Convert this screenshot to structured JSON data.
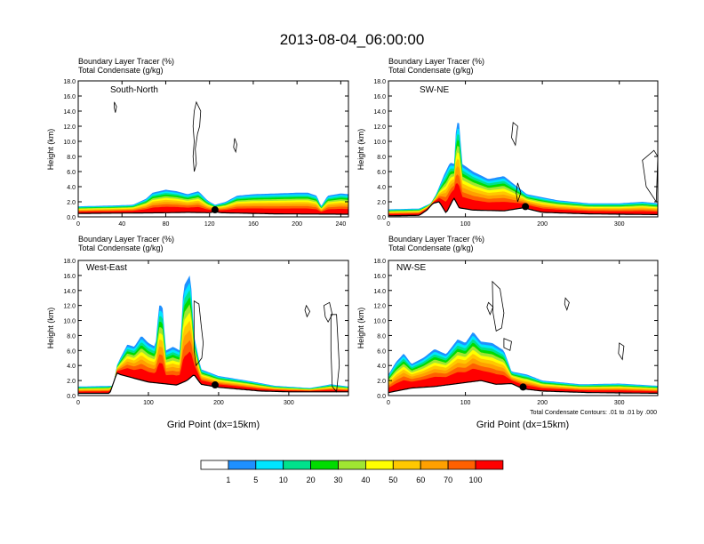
{
  "title": "2013-08-04_06:00:00",
  "colors": {
    "palette": [
      "#ffffff",
      "#1e90ff",
      "#00e5ff",
      "#00e28c",
      "#00dc00",
      "#a0e632",
      "#ffff00",
      "#ffc800",
      "#ffa000",
      "#ff6000",
      "#ff0000"
    ],
    "terrain": "#000000"
  },
  "colorbar": {
    "labels": [
      "1",
      "5",
      "10",
      "20",
      "30",
      "40",
      "50",
      "60",
      "70",
      "100"
    ]
  },
  "footnote": "Total Condensate Contours: .01 to .01 by .000",
  "chart_data": [
    {
      "type": "heatmap",
      "panel": "South-North",
      "label_top": "Boundary Layer Tracer   (%)",
      "label_bottom": "Total Condensate   (g/kg)",
      "ylabel": "Height (km)",
      "xlabel": "",
      "xlim": [
        0,
        247
      ],
      "ylim": [
        0,
        18
      ],
      "xticks": [
        "0",
        "40",
        "80",
        "120",
        "160",
        "200",
        "240"
      ],
      "xtick_values": [
        0,
        40,
        80,
        120,
        160,
        200,
        240
      ],
      "yticks": [
        "0.0",
        "2.0",
        "4.0",
        "6.0",
        "8.0",
        "10.0",
        "12.0",
        "14.0",
        "16.0",
        "18.0"
      ],
      "tracer_top_km": [
        [
          0,
          1.4
        ],
        [
          30,
          1.5
        ],
        [
          50,
          1.6
        ],
        [
          62,
          2.4
        ],
        [
          68,
          3.2
        ],
        [
          80,
          3.6
        ],
        [
          90,
          3.4
        ],
        [
          100,
          3.0
        ],
        [
          110,
          3.4
        ],
        [
          118,
          2.2
        ],
        [
          125,
          1.6
        ],
        [
          135,
          2.0
        ],
        [
          145,
          2.8
        ],
        [
          160,
          3.0
        ],
        [
          180,
          3.1
        ],
        [
          200,
          3.2
        ],
        [
          210,
          3.2
        ],
        [
          218,
          2.8
        ],
        [
          222,
          1.4
        ],
        [
          228,
          2.8
        ],
        [
          240,
          3.1
        ],
        [
          247,
          3.0
        ]
      ],
      "cloud_contours_km": [
        [
          [
            [
              33,
              15.2
            ],
            [
              35,
              14.6
            ],
            [
              34,
              13.8
            ],
            [
              33,
              14.4
            ],
            [
              33,
              15.2
            ]
          ]
        ],
        [
          [
            [
              108,
              15.2
            ],
            [
              112,
              14.0
            ],
            [
              111,
              12.0
            ],
            [
              109,
              11.0
            ],
            [
              107,
              9.0
            ],
            [
              108,
              7.0
            ],
            [
              106,
              6.0
            ],
            [
              105,
              8.0
            ],
            [
              106,
              10.0
            ],
            [
              105,
              12.0
            ],
            [
              106,
              14.0
            ],
            [
              108,
              15.2
            ]
          ]
        ],
        [
          [
            [
              143,
              10.4
            ],
            [
              145,
              9.6
            ],
            [
              144,
              8.6
            ],
            [
              142,
              9.2
            ],
            [
              143,
              10.4
            ]
          ]
        ]
      ],
      "terrain_km": [
        [
          0,
          0.45
        ],
        [
          40,
          0.5
        ],
        [
          80,
          0.55
        ],
        [
          100,
          0.6
        ],
        [
          120,
          0.55
        ],
        [
          125,
          0.7
        ],
        [
          130,
          0.55
        ],
        [
          180,
          0.4
        ],
        [
          247,
          0.35
        ]
      ],
      "marker_x": 125
    },
    {
      "type": "heatmap",
      "panel": "SW-NE",
      "label_top": "Boundary Layer Tracer   (%)",
      "label_bottom": "Total Condensate   (g/kg)",
      "ylabel": "Height (km)",
      "xlabel": "",
      "xlim": [
        0,
        350
      ],
      "ylim": [
        0,
        18
      ],
      "xticks": [
        "0",
        "100",
        "200",
        "300"
      ],
      "xtick_values": [
        0,
        100,
        200,
        300
      ],
      "yticks": [
        "0.0",
        "2.0",
        "4.0",
        "6.0",
        "8.0",
        "10.0",
        "12.0",
        "14.0",
        "16.0",
        "18.0"
      ],
      "tracer_top_km": [
        [
          0,
          1.0
        ],
        [
          40,
          1.1
        ],
        [
          55,
          1.8
        ],
        [
          62,
          3.0
        ],
        [
          72,
          5.5
        ],
        [
          80,
          7.2
        ],
        [
          86,
          7.0
        ],
        [
          88,
          12.5
        ],
        [
          92,
          12.4
        ],
        [
          96,
          7.0
        ],
        [
          110,
          6.0
        ],
        [
          130,
          5.0
        ],
        [
          150,
          5.4
        ],
        [
          165,
          4.2
        ],
        [
          180,
          3.0
        ],
        [
          200,
          2.6
        ],
        [
          220,
          2.2
        ],
        [
          240,
          2.0
        ],
        [
          260,
          1.8
        ],
        [
          300,
          1.8
        ],
        [
          330,
          2.0
        ],
        [
          350,
          1.8
        ]
      ],
      "cloud_contours_km": [
        [
          [
            [
              162,
              12.5
            ],
            [
              168,
              12.0
            ],
            [
              165,
              9.5
            ],
            [
              160,
              10.5
            ],
            [
              162,
              12.5
            ]
          ]
        ],
        [
          [
            [
              168,
              4.5
            ],
            [
              172,
              3.2
            ],
            [
              168,
              2.0
            ],
            [
              166,
              3.2
            ],
            [
              168,
              4.5
            ]
          ]
        ],
        [
          [
            [
              330,
              7.5
            ],
            [
              345,
              8.8
            ],
            [
              350,
              8.0
            ],
            [
              348,
              2.0
            ],
            [
              335,
              4.0
            ],
            [
              330,
              7.5
            ]
          ]
        ]
      ],
      "terrain_km": [
        [
          0,
          0.15
        ],
        [
          40,
          0.2
        ],
        [
          50,
          0.9
        ],
        [
          58,
          1.8
        ],
        [
          66,
          2.0
        ],
        [
          75,
          0.5
        ],
        [
          85,
          2.5
        ],
        [
          92,
          1.2
        ],
        [
          110,
          0.9
        ],
        [
          150,
          0.8
        ],
        [
          175,
          1.2
        ],
        [
          200,
          0.6
        ],
        [
          260,
          0.4
        ],
        [
          350,
          0.3
        ]
      ],
      "marker_x": 178
    },
    {
      "type": "heatmap",
      "panel": "West-East",
      "label_top": "Boundary Layer Tracer   (%)",
      "label_bottom": "Total Condensate   (g/kg)",
      "ylabel": "Height (km)",
      "xlabel": "Grid Point (dx=15km)",
      "xlim": [
        0,
        385
      ],
      "ylim": [
        0,
        18
      ],
      "xticks": [
        "0",
        "100",
        "200",
        "300"
      ],
      "xtick_values": [
        0,
        100,
        200,
        300
      ],
      "yticks": [
        "0.0",
        "2.0",
        "4.0",
        "6.0",
        "8.0",
        "10.0",
        "12.0",
        "14.0",
        "16.0",
        "18.0"
      ],
      "tracer_top_km": [
        [
          0,
          1.2
        ],
        [
          50,
          1.3
        ],
        [
          55,
          4.0
        ],
        [
          60,
          5.0
        ],
        [
          70,
          6.8
        ],
        [
          80,
          6.5
        ],
        [
          90,
          8.0
        ],
        [
          100,
          7.0
        ],
        [
          110,
          6.5
        ],
        [
          115,
          12.0
        ],
        [
          120,
          12.0
        ],
        [
          125,
          6.0
        ],
        [
          135,
          6.5
        ],
        [
          145,
          6.0
        ],
        [
          150,
          14.5
        ],
        [
          160,
          16.2
        ],
        [
          165,
          8.0
        ],
        [
          175,
          3.5
        ],
        [
          200,
          2.6
        ],
        [
          240,
          2.0
        ],
        [
          280,
          1.3
        ],
        [
          330,
          1.0
        ],
        [
          360,
          1.5
        ],
        [
          385,
          1.2
        ]
      ],
      "cloud_contours_km": [
        [
          [
            [
              165,
              12.6
            ],
            [
              172,
              12.2
            ],
            [
              175,
              9.5
            ],
            [
              178,
              7.0
            ],
            [
              176,
              5.0
            ],
            [
              168,
              4.0
            ],
            [
              165,
              6.0
            ],
            [
              165,
              12.6
            ]
          ]
        ],
        [
          [
            [
              325,
              12.0
            ],
            [
              330,
              11.2
            ],
            [
              326,
              10.5
            ],
            [
              323,
              11.4
            ],
            [
              325,
              12.0
            ]
          ]
        ],
        [
          [
            [
              350,
              12.0
            ],
            [
              358,
              12.4
            ],
            [
              362,
              10.8
            ],
            [
              356,
              9.8
            ],
            [
              352,
              10.5
            ],
            [
              350,
              12.0
            ]
          ]
        ],
        [
          [
            [
              360,
              10.8
            ],
            [
              368,
              10.8
            ],
            [
              372,
              4.0
            ],
            [
              368,
              0.5
            ],
            [
              362,
              1.2
            ],
            [
              360,
              6.0
            ],
            [
              360,
              10.8
            ]
          ]
        ]
      ],
      "terrain_km": [
        [
          0,
          0.3
        ],
        [
          45,
          0.3
        ],
        [
          55,
          3.0
        ],
        [
          60,
          2.8
        ],
        [
          100,
          1.8
        ],
        [
          140,
          1.4
        ],
        [
          155,
          2.0
        ],
        [
          165,
          2.8
        ],
        [
          175,
          1.5
        ],
        [
          200,
          1.1
        ],
        [
          260,
          0.6
        ],
        [
          300,
          0.5
        ],
        [
          385,
          0.5
        ]
      ],
      "marker_x": 195
    },
    {
      "type": "heatmap",
      "panel": "NW-SE",
      "label_top": "Boundary Layer Tracer   (%)",
      "label_bottom": "Total Condensate   (g/kg)",
      "ylabel": "Height (km)",
      "xlabel": "Grid Point (dx=15km)",
      "xlim": [
        0,
        350
      ],
      "ylim": [
        0,
        18
      ],
      "xticks": [
        "0",
        "100",
        "200",
        "300"
      ],
      "xtick_values": [
        0,
        100,
        200,
        300
      ],
      "yticks": [
        "0.0",
        "2.0",
        "4.0",
        "6.0",
        "8.0",
        "10.0",
        "12.0",
        "14.0",
        "16.0",
        "18.0"
      ],
      "tracer_top_km": [
        [
          0,
          2.8
        ],
        [
          10,
          4.5
        ],
        [
          20,
          5.6
        ],
        [
          30,
          4.2
        ],
        [
          45,
          5.0
        ],
        [
          60,
          6.2
        ],
        [
          75,
          5.5
        ],
        [
          90,
          7.5
        ],
        [
          100,
          7.0
        ],
        [
          110,
          8.5
        ],
        [
          120,
          7.2
        ],
        [
          135,
          7.0
        ],
        [
          150,
          6.0
        ],
        [
          160,
          3.2
        ],
        [
          180,
          2.8
        ],
        [
          200,
          2.0
        ],
        [
          220,
          1.8
        ],
        [
          250,
          1.5
        ],
        [
          300,
          1.6
        ],
        [
          350,
          1.3
        ]
      ],
      "cloud_contours_km": [
        [
          [
            [
              135,
              15.2
            ],
            [
              145,
              14.2
            ],
            [
              150,
              11.0
            ],
            [
              147,
              9.0
            ],
            [
              140,
              8.6
            ],
            [
              136,
              11.0
            ],
            [
              135,
              15.2
            ]
          ]
        ],
        [
          [
            [
              130,
              12.4
            ],
            [
              136,
              11.8
            ],
            [
              132,
              10.8
            ],
            [
              128,
              11.8
            ],
            [
              130,
              12.4
            ]
          ]
        ],
        [
          [
            [
              150,
              7.6
            ],
            [
              160,
              7.2
            ],
            [
              158,
              6.0
            ],
            [
              150,
              6.4
            ],
            [
              150,
              7.6
            ]
          ]
        ],
        [
          [
            [
              230,
              13.0
            ],
            [
              235,
              12.4
            ],
            [
              232,
              11.4
            ],
            [
              229,
              12.2
            ],
            [
              230,
              13.0
            ]
          ]
        ],
        [
          [
            [
              300,
              7.0
            ],
            [
              306,
              6.6
            ],
            [
              304,
              4.8
            ],
            [
              299,
              5.6
            ],
            [
              300,
              7.0
            ]
          ]
        ]
      ],
      "terrain_km": [
        [
          0,
          0.4
        ],
        [
          30,
          1.0
        ],
        [
          60,
          1.2
        ],
        [
          90,
          1.6
        ],
        [
          120,
          2.0
        ],
        [
          140,
          1.5
        ],
        [
          160,
          1.6
        ],
        [
          175,
          0.9
        ],
        [
          200,
          0.6
        ],
        [
          260,
          0.4
        ],
        [
          350,
          0.3
        ]
      ],
      "marker_x": 175
    }
  ]
}
